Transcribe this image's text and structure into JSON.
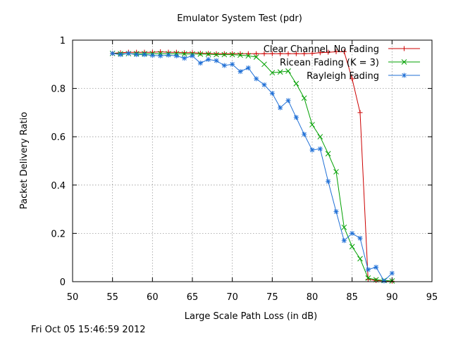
{
  "chart_data": {
    "type": "line",
    "title": "Emulator System Test (pdr)",
    "xlabel": "Large Scale Path Loss (in dB)",
    "ylabel": "Packet Delivery Ratio",
    "xlim": [
      50,
      95
    ],
    "ylim": [
      0,
      1
    ],
    "xticks": [
      "50",
      "55",
      "60",
      "65",
      "70",
      "75",
      "80",
      "85",
      "90",
      "95"
    ],
    "yticks": [
      "0",
      "0.2",
      "0.4",
      "0.6",
      "0.8",
      "1"
    ],
    "grid": true,
    "legend_position": "top-right",
    "series": [
      {
        "name": "Clear Channel, No Fading",
        "color": "#cc0000",
        "marker": "plus",
        "x": [
          55,
          56,
          57,
          58,
          59,
          60,
          61,
          62,
          63,
          64,
          65,
          66,
          67,
          68,
          69,
          70,
          71,
          72,
          73,
          74,
          75,
          76,
          77,
          78,
          79,
          80,
          81,
          82,
          83,
          84,
          85,
          86,
          87,
          88,
          89,
          90
        ],
        "y": [
          0.945,
          0.948,
          0.95,
          0.95,
          0.95,
          0.95,
          0.952,
          0.95,
          0.95,
          0.948,
          0.948,
          0.946,
          0.945,
          0.944,
          0.944,
          0.944,
          0.944,
          0.944,
          0.944,
          0.944,
          0.944,
          0.944,
          0.944,
          0.944,
          0.944,
          0.945,
          0.948,
          0.95,
          0.952,
          0.952,
          0.84,
          0.7,
          0.01,
          0.005,
          0.003,
          0.002
        ]
      },
      {
        "name": "Ricean Fading (K = 3)",
        "color": "#00a000",
        "marker": "cross",
        "x": [
          55,
          56,
          57,
          58,
          59,
          60,
          61,
          62,
          63,
          64,
          65,
          66,
          67,
          68,
          69,
          70,
          71,
          72,
          73,
          74,
          75,
          76,
          77,
          78,
          79,
          80,
          81,
          82,
          83,
          84,
          85,
          86,
          87,
          88,
          89,
          90
        ],
        "y": [
          0.945,
          0.944,
          0.944,
          0.944,
          0.944,
          0.944,
          0.944,
          0.944,
          0.944,
          0.943,
          0.943,
          0.942,
          0.942,
          0.94,
          0.94,
          0.94,
          0.938,
          0.935,
          0.93,
          0.9,
          0.865,
          0.868,
          0.872,
          0.82,
          0.76,
          0.65,
          0.6,
          0.53,
          0.455,
          0.225,
          0.145,
          0.095,
          0.015,
          0.008,
          0.005,
          0.003
        ]
      },
      {
        "name": "Rayleigh Fading",
        "color": "#1f6fd6",
        "marker": "star",
        "x": [
          55,
          56,
          57,
          58,
          59,
          60,
          61,
          62,
          63,
          64,
          65,
          66,
          67,
          68,
          69,
          70,
          71,
          72,
          73,
          74,
          75,
          76,
          77,
          78,
          79,
          80,
          81,
          82,
          83,
          84,
          85,
          86,
          87,
          88,
          89,
          90
        ],
        "y": [
          0.945,
          0.94,
          0.945,
          0.94,
          0.94,
          0.937,
          0.935,
          0.938,
          0.935,
          0.925,
          0.935,
          0.905,
          0.92,
          0.915,
          0.895,
          0.9,
          0.87,
          0.885,
          0.84,
          0.815,
          0.78,
          0.72,
          0.75,
          0.68,
          0.61,
          0.545,
          0.55,
          0.415,
          0.29,
          0.17,
          0.2,
          0.18,
          0.05,
          0.06,
          0.003,
          0.035
        ]
      }
    ]
  },
  "footer": {
    "timestamp": "Fri Oct 05 15:46:59 2012"
  }
}
